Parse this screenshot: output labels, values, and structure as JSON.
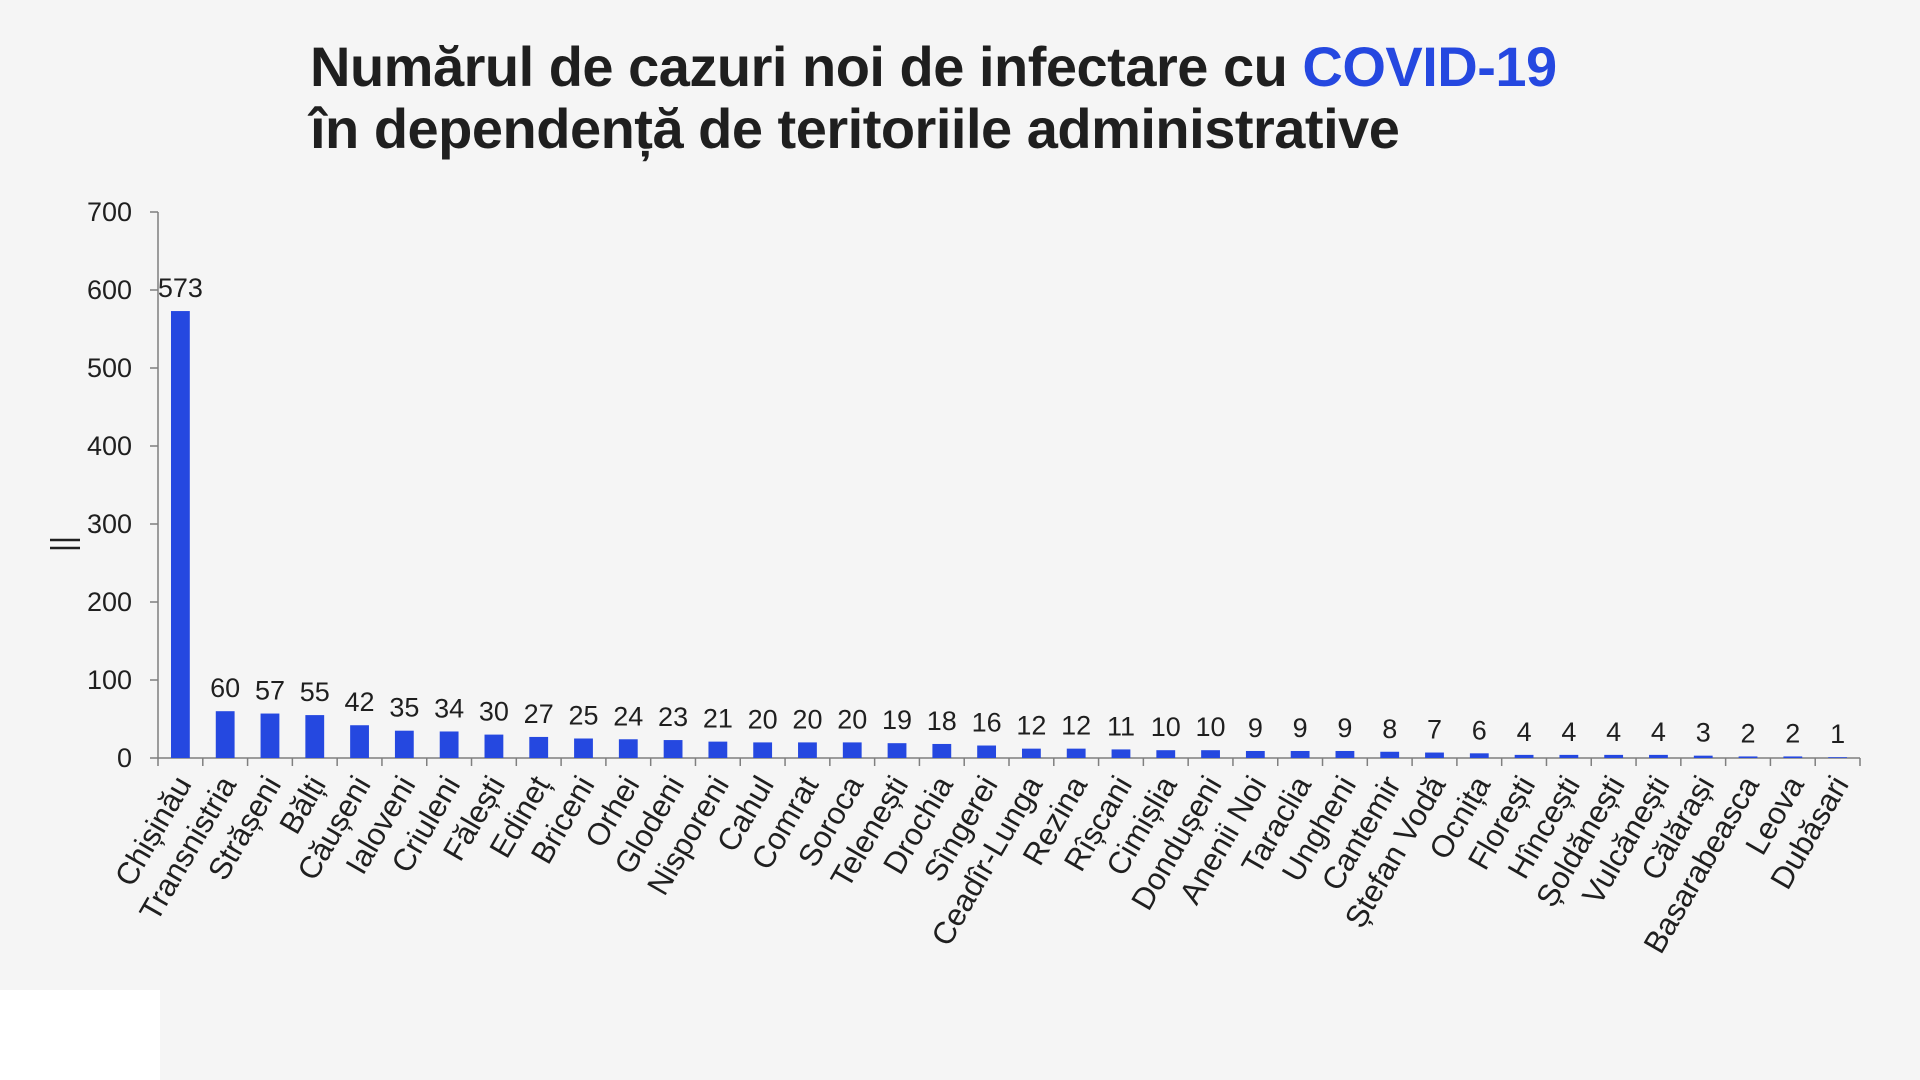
{
  "colors": {
    "bar": "#2548e0",
    "axis": "#7f7f7f",
    "text": "#1f1f1f",
    "accent": "#2548e0",
    "background": "#f5f5f5"
  },
  "header": {
    "title_part1": "Numărul de cazuri noi de infectare cu ",
    "title_accent": "COVID-19",
    "title_line2": "în dependență de teritoriile administrative"
  },
  "chart_data": {
    "type": "bar",
    "title": "Numărul de cazuri noi de infectare cu COVID-19 în dependență de teritoriile administrative",
    "xlabel": "",
    "ylabel": "",
    "ylim": [
      0,
      700
    ],
    "yticks": [
      0,
      100,
      200,
      300,
      400,
      500,
      600,
      700
    ],
    "grid": false,
    "legend": "none",
    "categories": [
      "Chișinău",
      "Transnistria",
      "Strășeni",
      "Bălți",
      "Căușeni",
      "Ialoveni",
      "Criuleni",
      "Fălești",
      "Edineț",
      "Briceni",
      "Orhei",
      "Glodeni",
      "Nisporeni",
      "Cahul",
      "Comrat",
      "Soroca",
      "Telenești",
      "Drochia",
      "Sîngerei",
      "Ceadîr-Lunga",
      "Rezina",
      "Rîșcani",
      "Cimișlia",
      "Dondușeni",
      "Anenii Noi",
      "Taraclia",
      "Ungheni",
      "Cantemir",
      "Ștefan Vodă",
      "Ocnița",
      "Florești",
      "Hîncești",
      "Șoldănești",
      "Vulcănești",
      "Călărași",
      "Basarabeasca",
      "Leova",
      "Dubăsari"
    ],
    "values": [
      573,
      60,
      57,
      55,
      42,
      35,
      34,
      30,
      27,
      25,
      24,
      23,
      21,
      20,
      20,
      20,
      19,
      18,
      16,
      12,
      12,
      11,
      10,
      10,
      9,
      9,
      9,
      8,
      7,
      6,
      4,
      4,
      4,
      4,
      3,
      2,
      2,
      1
    ]
  }
}
